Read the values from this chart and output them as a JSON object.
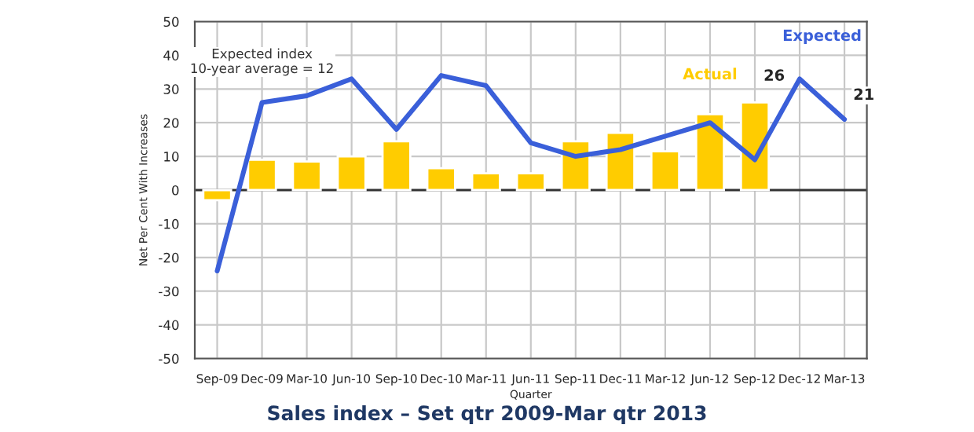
{
  "chart_data": {
    "type": "bar",
    "title": "Sales index – Set qtr 2009-Mar qtr 2013",
    "xlabel": "Quarter",
    "ylabel": "Net Per Cent With Increases",
    "categories": [
      "Sep-09",
      "Dec-09",
      "Mar-10",
      "Jun-10",
      "Sep-10",
      "Dec-10",
      "Mar-11",
      "Jun-11",
      "Sep-11",
      "Dec-11",
      "Mar-12",
      "Jun-12",
      "Sep-12",
      "Dec-12",
      "Mar-13"
    ],
    "series": [
      {
        "name": "Actual",
        "color": "#ffcc00",
        "values": [
          -3,
          9,
          8.5,
          10,
          14.5,
          6.5,
          5,
          5,
          14.5,
          17,
          11.5,
          22.5,
          26,
          null,
          null
        ],
        "value_labels": [
          null,
          null,
          null,
          null,
          null,
          null,
          null,
          null,
          null,
          null,
          null,
          null,
          "26",
          null,
          null
        ]
      },
      {
        "name": "Expected",
        "type": "line",
        "color": "#3a5fd9",
        "values": [
          -24,
          26,
          28,
          33,
          18,
          34,
          31,
          14,
          10,
          12,
          16,
          20,
          9,
          33,
          21
        ],
        "value_labels": [
          null,
          null,
          null,
          null,
          null,
          null,
          null,
          null,
          null,
          null,
          null,
          null,
          null,
          null,
          "21"
        ]
      }
    ],
    "annotations": [
      "Expected index\n10-year average = 12"
    ],
    "ylim": [
      -50,
      50
    ],
    "yticks": [
      -50,
      -40,
      -30,
      -20,
      -10,
      0,
      10,
      20,
      30,
      40,
      50
    ],
    "grid": true,
    "legend": false
  }
}
